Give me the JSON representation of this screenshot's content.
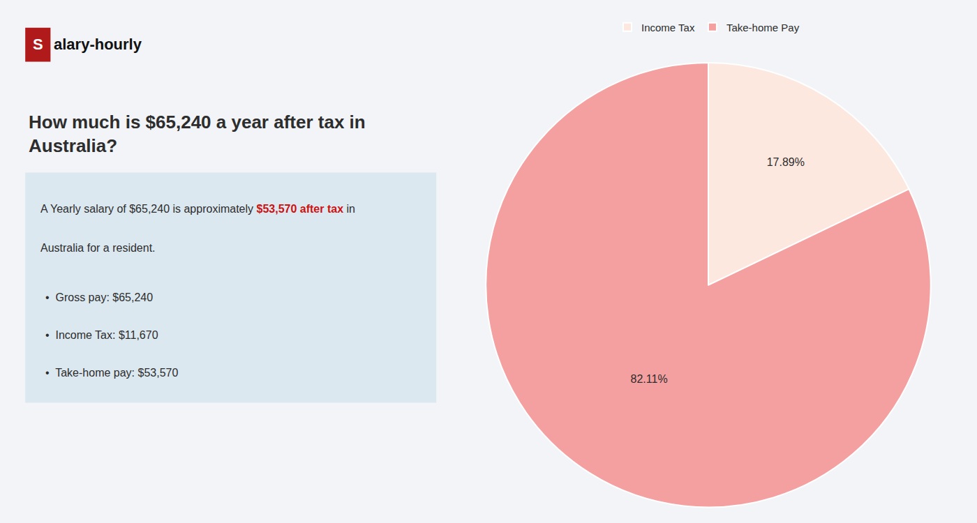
{
  "chart_data": {
    "type": "pie",
    "title": "How much is $65,240 a year after tax in\nAustralia?",
    "annotations": [
      [
        {
          "text": "S",
          "color": "#b01a1a"
        },
        {
          "text": "alary-hourly"
        }
      ],
      [
        {
          "text": "A Yearly salary of $65,240 is approximately "
        },
        {
          "text": "$53,570 after tax",
          "color": "#cc1111"
        },
        {
          "text": " in"
        }
      ],
      [
        {
          "text": "Australia for a resident."
        }
      ],
      [
        {
          "text": "•  Gross pay: $65,240"
        }
      ],
      [
        {
          "text": "•  Income Tax: $11,670"
        }
      ],
      [
        {
          "text": "•  Take-home pay: $53,570"
        }
      ]
    ],
    "categories": [
      "Income Tax",
      "Take-home Pay"
    ],
    "values": [
      17.89,
      82.11
    ],
    "value_labels": [
      "17.89%",
      "82.11%"
    ],
    "colors": [
      "#fde8df",
      "#f5a0a0"
    ],
    "data_labels": true,
    "legend": "top"
  }
}
